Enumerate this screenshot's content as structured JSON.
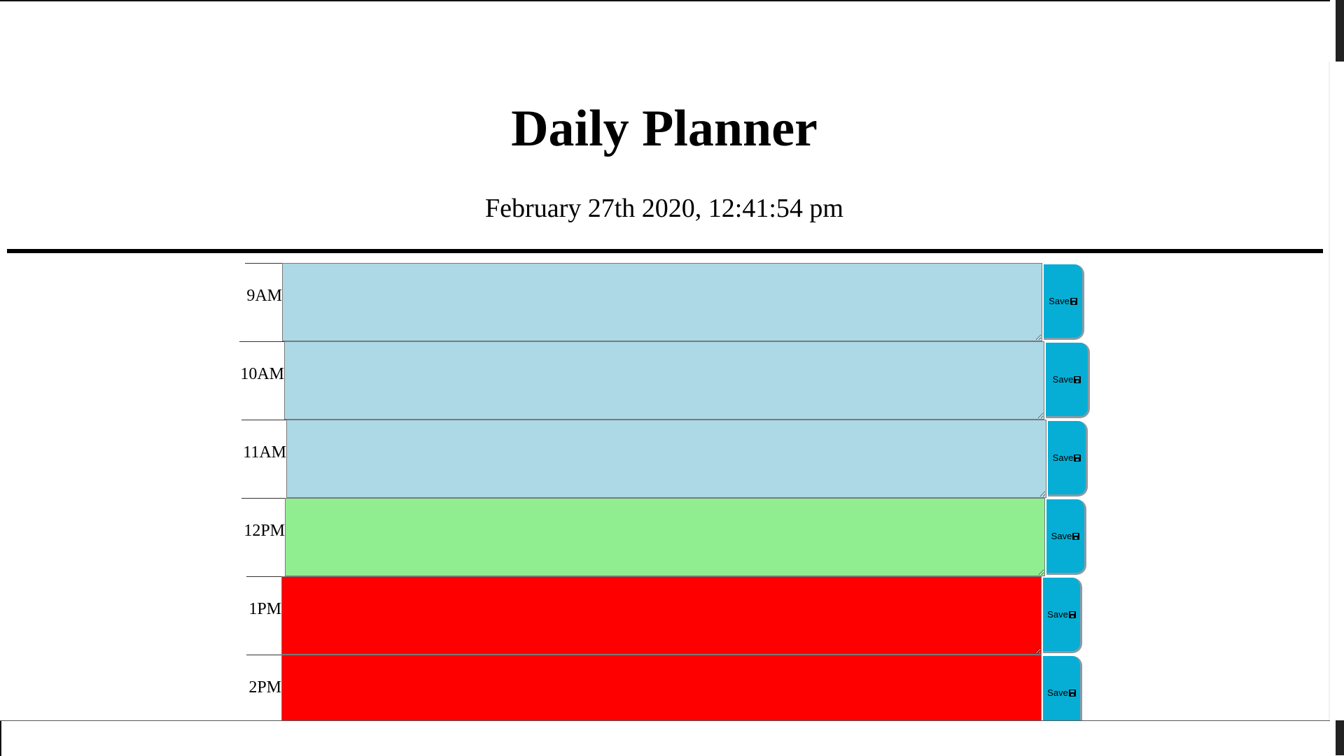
{
  "header": {
    "title": "Daily Planner",
    "date": "February 27th 2020, 12:41:54 pm"
  },
  "rows": [
    {
      "hour": "9AM",
      "state": "past",
      "text": "",
      "save_label": "Save"
    },
    {
      "hour": "10AM",
      "state": "past",
      "text": "",
      "save_label": "Save"
    },
    {
      "hour": "11AM",
      "state": "past",
      "text": "",
      "save_label": "Save"
    },
    {
      "hour": "12PM",
      "state": "present",
      "text": "",
      "save_label": "Save"
    },
    {
      "hour": "1PM",
      "state": "future",
      "text": "",
      "save_label": "Save"
    },
    {
      "hour": "2PM",
      "state": "future",
      "text": "",
      "save_label": "Save"
    }
  ],
  "colors": {
    "past": "#add8e6",
    "present": "#90ee90",
    "future": "#ff0000",
    "save_button": "#06aed5"
  },
  "icons": {
    "save": "floppy-disk-icon"
  }
}
